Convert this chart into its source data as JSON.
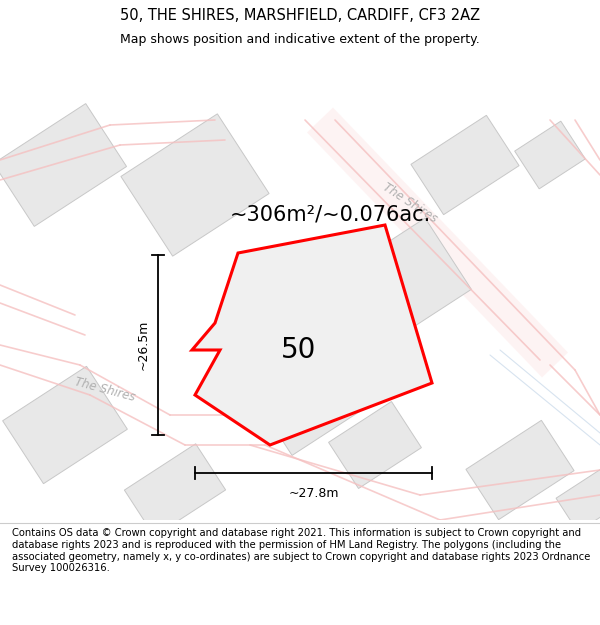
{
  "title": "50, THE SHIRES, MARSHFIELD, CARDIFF, CF3 2AZ",
  "subtitle": "Map shows position and indicative extent of the property.",
  "footer": "Contains OS data © Crown copyright and database right 2021. This information is subject to Crown copyright and database rights 2023 and is reproduced with the permission of HM Land Registry. The polygons (including the associated geometry, namely x, y co-ordinates) are subject to Crown copyright and database rights 2023 Ordnance Survey 100026316.",
  "area_text": "~306m²/~0.076ac.",
  "label_50": "50",
  "dim_height": "~26.5m",
  "dim_width": "~27.8m",
  "street_label_diag": "The Shires",
  "street_label_curve": "The Shires",
  "map_bg": "#f7f7f7",
  "building_color": "#e8e8e8",
  "building_edge": "#c8c8c8",
  "road_color": "#f5c0c0",
  "road_lw": 1.2,
  "plot_fill": "#f0f0f0",
  "plot_edge": "#ff0000",
  "title_fontsize": 10.5,
  "subtitle_fontsize": 9,
  "footer_fontsize": 7.2,
  "area_fontsize": 15,
  "label50_fontsize": 20
}
